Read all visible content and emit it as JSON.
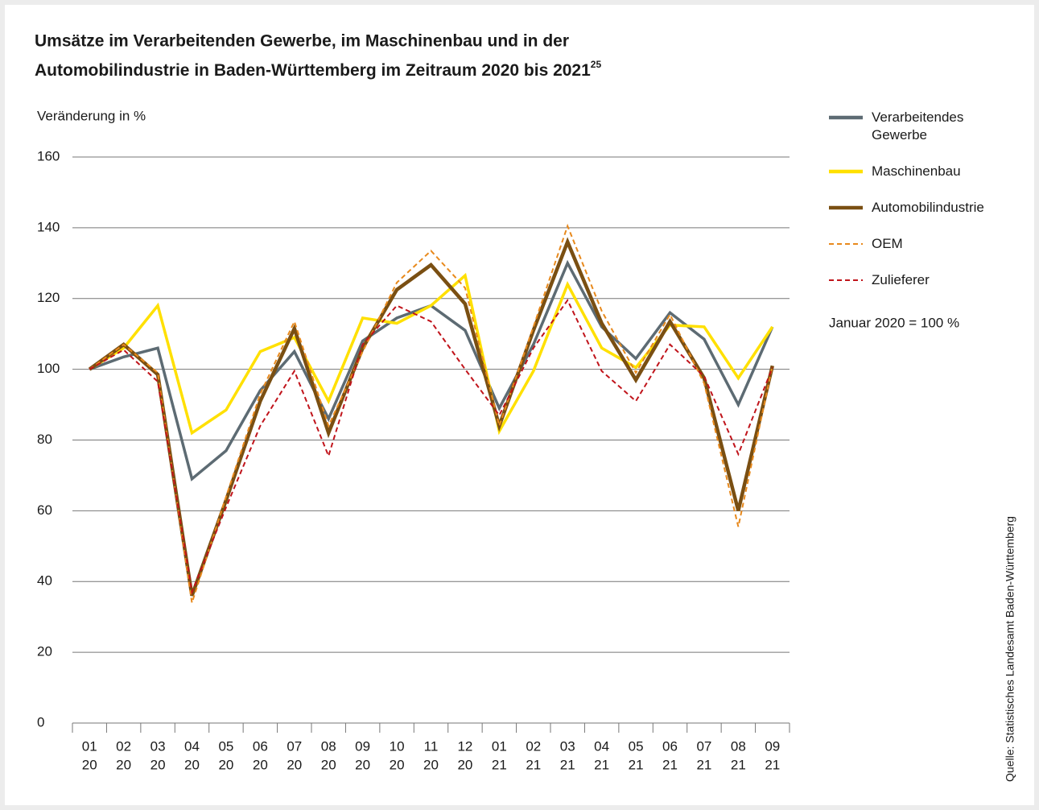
{
  "chart_data": {
    "type": "line",
    "title_lines": [
      "Umsätze im Verarbeitenden Gewerbe, im Maschinenbau und in der",
      "Automobilindustrie in Baden-Württemberg im Zeitraum 2020 bis 2021"
    ],
    "title_footnote": "25",
    "y_label": "Veränderung in %",
    "note": "Januar 2020 = 100 %",
    "source": "Quelle: Statistisches Landesamt Baden-Württemberg",
    "categories": [
      [
        "01",
        "20"
      ],
      [
        "02",
        "20"
      ],
      [
        "03",
        "20"
      ],
      [
        "04",
        "20"
      ],
      [
        "05",
        "20"
      ],
      [
        "06",
        "20"
      ],
      [
        "07",
        "20"
      ],
      [
        "08",
        "20"
      ],
      [
        "09",
        "20"
      ],
      [
        "10",
        "20"
      ],
      [
        "11",
        "20"
      ],
      [
        "12",
        "20"
      ],
      [
        "01",
        "21"
      ],
      [
        "02",
        "21"
      ],
      [
        "03",
        "21"
      ],
      [
        "04",
        "21"
      ],
      [
        "05",
        "21"
      ],
      [
        "06",
        "21"
      ],
      [
        "07",
        "21"
      ],
      [
        "08",
        "21"
      ],
      [
        "09",
        "21"
      ]
    ],
    "ylim": [
      0,
      160
    ],
    "yticks": [
      0,
      20,
      40,
      60,
      80,
      100,
      120,
      140,
      160
    ],
    "grid": true,
    "legend": "right",
    "series": [
      {
        "name": "Verarbeitendes Gewerbe",
        "color": "#5d6b73",
        "width": 3.5,
        "dashed": false,
        "values": [
          100,
          103.5,
          106,
          69,
          77,
          94,
          105,
          86,
          108,
          114.5,
          118,
          111,
          89,
          107,
          130,
          112,
          103,
          116,
          108.5,
          90,
          112
        ]
      },
      {
        "name": "Maschinenbau",
        "color": "#ffe000",
        "width": 3.5,
        "dashed": false,
        "values": [
          100,
          106,
          118,
          82,
          88.5,
          105,
          109,
          91,
          114.5,
          113,
          118,
          126.5,
          82.5,
          99.5,
          124,
          106,
          100.5,
          112.5,
          112,
          97.5,
          112
        ]
      },
      {
        "name": "Automobilindustrie",
        "color": "#7a4f12",
        "width": 4.5,
        "dashed": false,
        "values": [
          100,
          107,
          98.5,
          36,
          63,
          91,
          111.5,
          82,
          106,
          122.5,
          129.5,
          118.5,
          84,
          111,
          136,
          113,
          97,
          113.5,
          97.5,
          60,
          101
        ]
      },
      {
        "name": "OEM",
        "color": "#e8891c",
        "width": 2,
        "dashed": true,
        "values": [
          100,
          107,
          99,
          34,
          64,
          93,
          113.5,
          84,
          105,
          124.5,
          133.5,
          123,
          84,
          112,
          140.5,
          116.5,
          99,
          115.5,
          96,
          55.5,
          101
        ]
      },
      {
        "name": "Zulieferer",
        "color": "#c0141b",
        "width": 2,
        "dashed": true,
        "values": [
          100,
          105.5,
          96.5,
          37,
          61,
          84,
          99.5,
          75.5,
          107,
          118,
          113.5,
          100,
          87,
          106,
          119.5,
          99.5,
          91,
          107,
          98,
          76,
          100.5
        ]
      }
    ]
  }
}
